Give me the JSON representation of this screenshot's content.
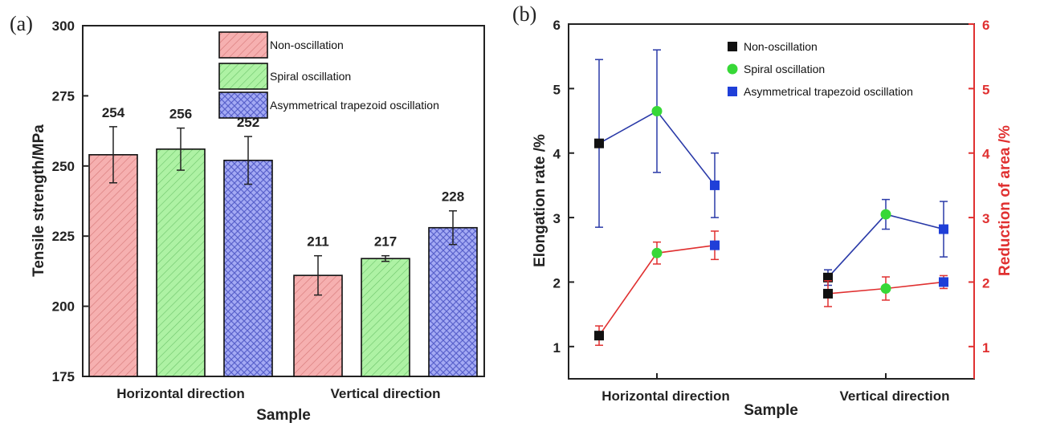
{
  "panels": {
    "a_label": "(a)",
    "b_label": "(b)"
  },
  "chart_data": [
    {
      "type": "bar",
      "panel": "(a)",
      "xlabel": "Sample",
      "ylabel": "Tensile strength/MPa",
      "ylim": [
        175,
        300
      ],
      "yticks": [
        "175",
        "200",
        "225",
        "250",
        "275",
        "300"
      ],
      "categories": [
        "Horizontal direction",
        "Vertical direction"
      ],
      "legend_position": "top-right",
      "series": [
        {
          "name": "Non-oscillation",
          "color": "#f4a6a6",
          "pattern": "diagonal hatch",
          "values": [
            254,
            211
          ],
          "labels": [
            "254",
            "211"
          ],
          "err": [
            10,
            7
          ]
        },
        {
          "name": "Spiral oscillation",
          "color": "#a9f0a0",
          "pattern": "diagonal hatch",
          "values": [
            256,
            217
          ],
          "labels": [
            "256",
            "217"
          ],
          "err": [
            7.5,
            1
          ]
        },
        {
          "name": "Asymmetrical trapezoid oscillation",
          "color": "#9ea6f2",
          "pattern": "cross hatch",
          "values": [
            252,
            228
          ],
          "labels": [
            "252",
            "228"
          ],
          "err": [
            8.5,
            6
          ]
        }
      ]
    },
    {
      "type": "line",
      "panel": "(b)",
      "xlabel": "Sample",
      "ylabel": "Elongation rate /%",
      "ylabel_right": "Reduction of area /%",
      "ylim": [
        0.5,
        6
      ],
      "yticks": [
        "1",
        "2",
        "3",
        "4",
        "5",
        "6"
      ],
      "ylim_right": [
        0.5,
        6
      ],
      "yticks_right": [
        "1",
        "2",
        "3",
        "4",
        "5",
        "6"
      ],
      "categories": [
        "Horizontal direction",
        "Vertical direction"
      ],
      "legend_position": "top-right",
      "legend": [
        {
          "name": "Non-oscillation",
          "color": "#111111",
          "marker": "square"
        },
        {
          "name": "Spiral oscillation",
          "color": "#37d837",
          "marker": "circle"
        },
        {
          "name": "Asymmetrical trapezoid oscillation",
          "color": "#1f3fd8",
          "marker": "square"
        }
      ],
      "elongation": {
        "color": "#2a3aa8",
        "horizontal": [
          {
            "x": 0,
            "y": 4.15,
            "err": 1.3,
            "marker": "Non-oscillation"
          },
          {
            "x": 1,
            "y": 4.65,
            "err": 0.95,
            "marker": "Spiral oscillation"
          },
          {
            "x": 2,
            "y": 3.5,
            "err": 0.5,
            "marker": "Asymmetrical trapezoid oscillation"
          }
        ],
        "vertical": [
          {
            "x": 4,
            "y": 2.07,
            "err": 0.12,
            "marker": "Non-oscillation"
          },
          {
            "x": 5,
            "y": 3.05,
            "err": 0.23,
            "marker": "Spiral oscillation"
          },
          {
            "x": 6,
            "y": 2.82,
            "err": 0.43,
            "marker": "Asymmetrical trapezoid oscillation"
          }
        ]
      },
      "reduction_of_area": {
        "color": "#e03030",
        "horizontal": [
          {
            "x": 0,
            "y": 1.17,
            "err": 0.15,
            "marker": "Non-oscillation"
          },
          {
            "x": 1,
            "y": 2.45,
            "err": 0.17,
            "marker": "Spiral oscillation"
          },
          {
            "x": 2,
            "y": 2.57,
            "err": 0.22,
            "marker": "Asymmetrical trapezoid oscillation"
          }
        ],
        "vertical": [
          {
            "x": 4,
            "y": 1.82,
            "err": 0.2,
            "marker": "Non-oscillation"
          },
          {
            "x": 5,
            "y": 1.9,
            "err": 0.18,
            "marker": "Spiral oscillation"
          },
          {
            "x": 6,
            "y": 2.0,
            "err": 0.1,
            "marker": "Asymmetrical trapezoid oscillation"
          }
        ]
      }
    }
  ]
}
